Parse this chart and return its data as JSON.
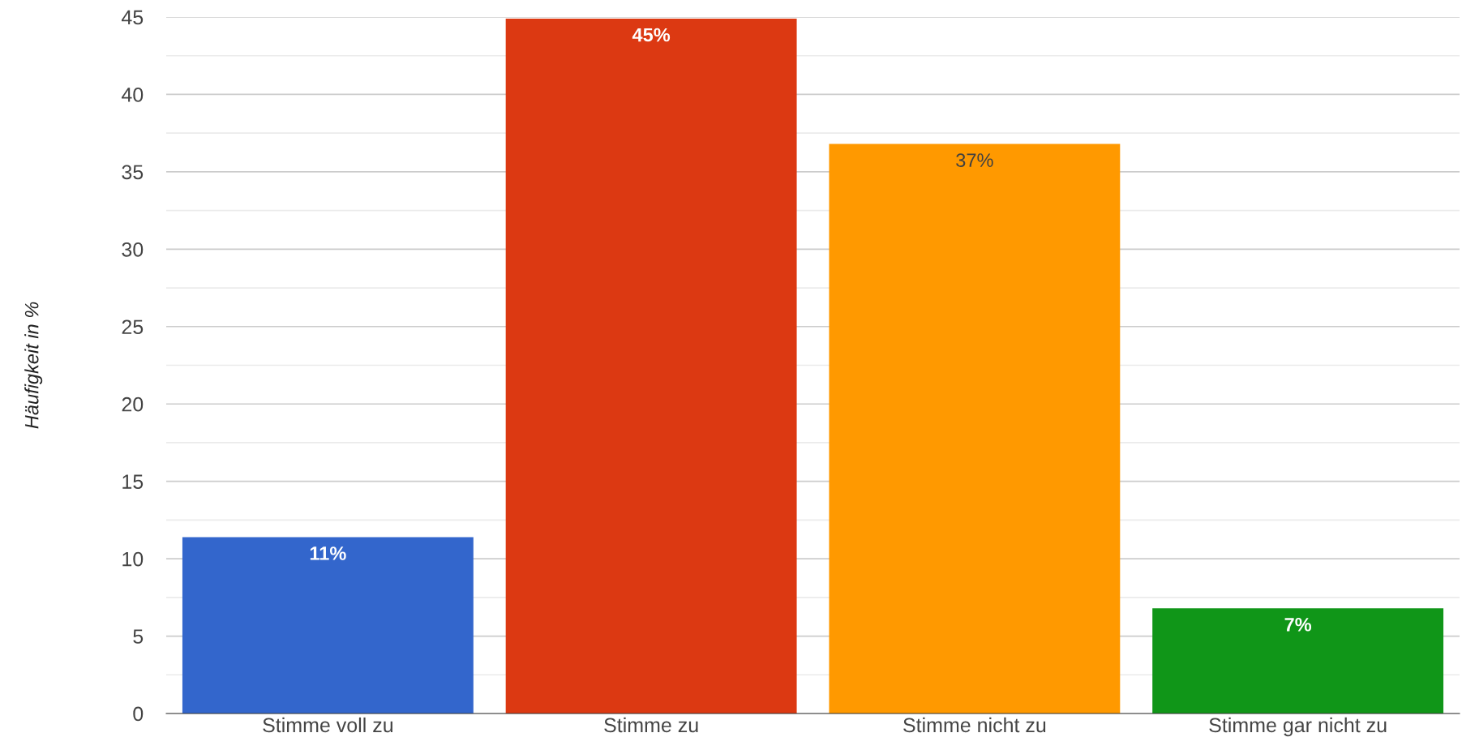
{
  "chart_data": {
    "type": "bar",
    "ylabel": "Häufigkeit in %",
    "categories": [
      "Stimme voll zu",
      "Stimme zu",
      "Stimme nicht zu",
      "Stimme gar nicht zu"
    ],
    "values": [
      11.4,
      44.9,
      36.8,
      6.8
    ],
    "colors": [
      "#3366cc",
      "#dc3912",
      "#ff9900",
      "#109618"
    ],
    "value_labels": [
      "11%",
      "45%",
      "37%",
      "7%"
    ],
    "ylim": [
      0,
      45
    ],
    "yticks": [
      0,
      {
        "value": 2.5,
        "label": null
      },
      5,
      {
        "value": 7.5,
        "label": null
      },
      10,
      {
        "value": 12.5,
        "label": null
      },
      15,
      {
        "value": 17.5,
        "label": null
      },
      20,
      {
        "value": 22.5,
        "label": null
      },
      25,
      {
        "value": 27.5,
        "label": null
      },
      30,
      {
        "value": 32.5,
        "label": null
      },
      35,
      {
        "value": 37.5,
        "label": null
      },
      40,
      {
        "value": 42.5,
        "label": null
      },
      45
    ],
    "grid": "y",
    "legend": false
  }
}
